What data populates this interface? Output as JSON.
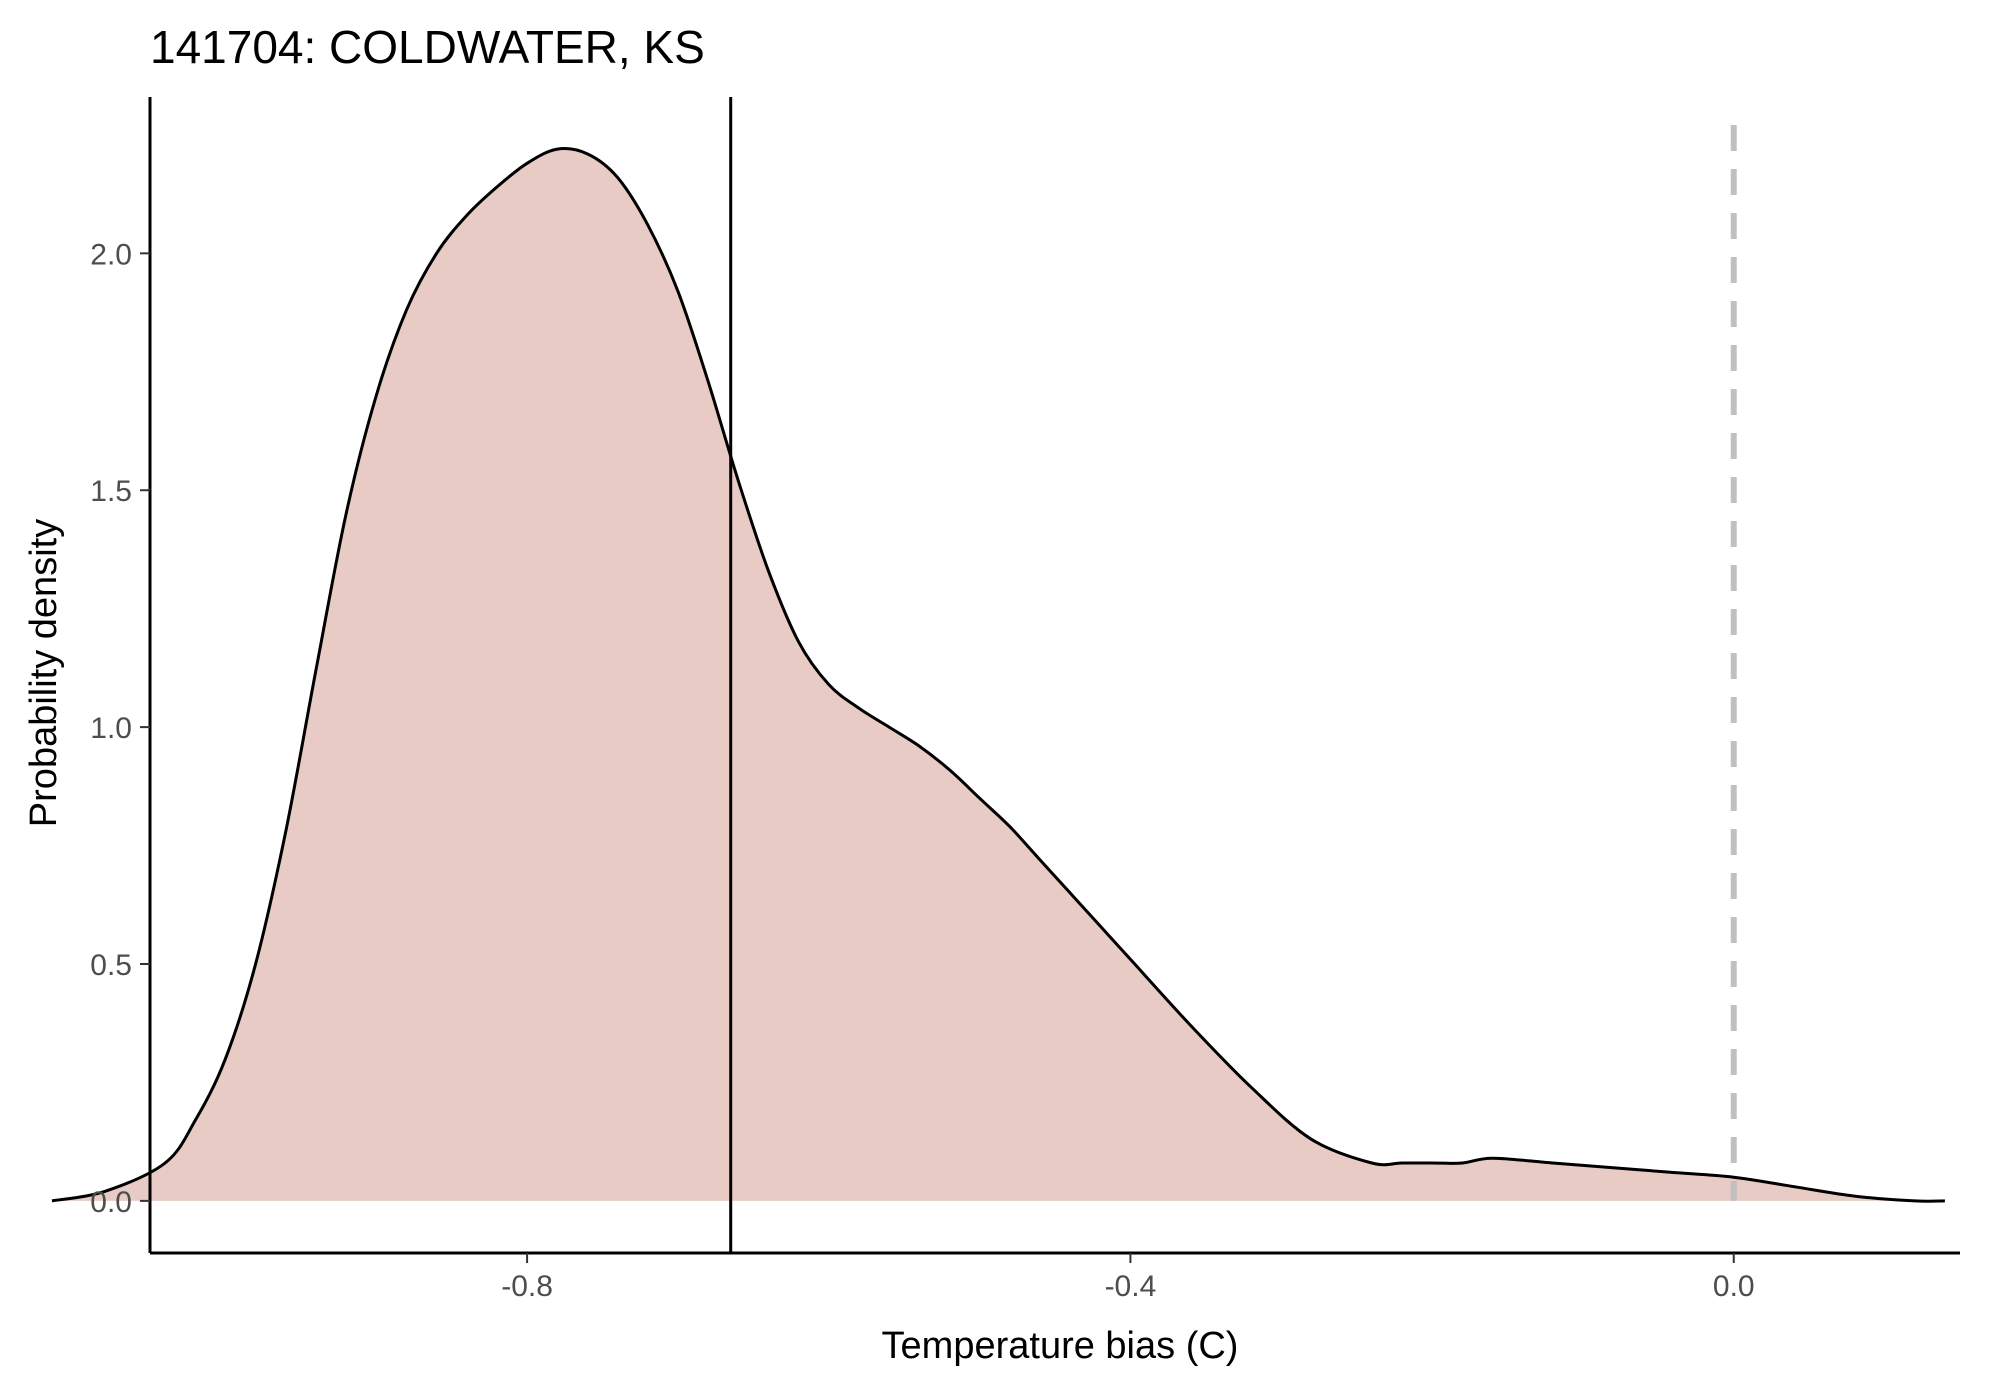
{
  "chart_data": {
    "type": "area",
    "title": "141704: COLDWATER, KS",
    "xlabel": "Temperature bias (C)",
    "ylabel": "Probability density",
    "xlim": [
      -1.05,
      0.15
    ],
    "ylim": [
      -0.11,
      2.33
    ],
    "x_ticks": [
      -0.8,
      -0.4,
      0.0
    ],
    "x_tick_labels": [
      "-0.8",
      "-0.4",
      "0.0"
    ],
    "y_ticks": [
      0.0,
      0.5,
      1.0,
      1.5,
      2.0
    ],
    "y_tick_labels": [
      "0.0",
      "0.5",
      "1.0",
      "1.5",
      "2.0"
    ],
    "grid": false,
    "fill_color": "#e8cbc5",
    "line_color": "#000000",
    "series": [
      {
        "x": [
          -1.115,
          -1.08,
          -1.04,
          -1.02,
          -1.0,
          -0.98,
          -0.96,
          -0.94,
          -0.92,
          -0.9,
          -0.88,
          -0.86,
          -0.84,
          -0.82,
          -0.8,
          -0.78,
          -0.76,
          -0.74,
          -0.72,
          -0.7,
          -0.68,
          -0.66,
          -0.64,
          -0.62,
          -0.6,
          -0.58,
          -0.56,
          -0.54,
          -0.52,
          -0.5,
          -0.48,
          -0.46,
          -0.44,
          -0.42,
          -0.4,
          -0.36,
          -0.32,
          -0.28,
          -0.24,
          -0.22,
          -0.2,
          -0.18,
          -0.16,
          -0.12,
          -0.08,
          -0.04,
          0.0,
          0.04,
          0.08,
          0.12,
          0.14
        ],
        "y": [
          0.0,
          0.02,
          0.08,
          0.17,
          0.3,
          0.5,
          0.78,
          1.12,
          1.45,
          1.7,
          1.88,
          2.0,
          2.08,
          2.14,
          2.19,
          2.22,
          2.21,
          2.16,
          2.06,
          1.92,
          1.73,
          1.52,
          1.33,
          1.18,
          1.09,
          1.04,
          1.0,
          0.96,
          0.91,
          0.85,
          0.79,
          0.72,
          0.65,
          0.58,
          0.51,
          0.37,
          0.24,
          0.13,
          0.08,
          0.08,
          0.08,
          0.08,
          0.09,
          0.08,
          0.07,
          0.06,
          0.05,
          0.03,
          0.01,
          0.0,
          0.0
        ]
      }
    ],
    "vlines": [
      {
        "x": -0.665,
        "style": "solid",
        "color": "#000000"
      },
      {
        "x": 0.0,
        "style": "dashed",
        "color": "#c0c0c0"
      }
    ]
  }
}
